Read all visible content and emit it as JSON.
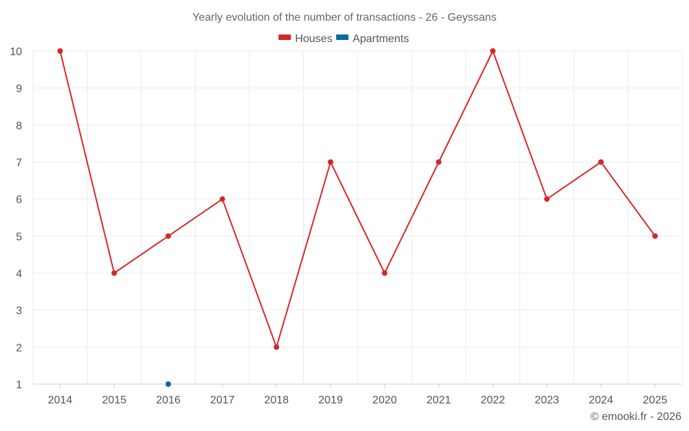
{
  "chart_data": {
    "type": "line",
    "title": "Yearly evolution of the number of transactions - 26 - Geyssans",
    "categories": [
      "2014",
      "2015",
      "2016",
      "2017",
      "2018",
      "2019",
      "2020",
      "2021",
      "2022",
      "2023",
      "2024",
      "2025"
    ],
    "series": [
      {
        "name": "Houses",
        "color": "#d62728",
        "values": [
          10,
          4,
          5,
          6,
          2,
          7,
          4,
          7,
          10,
          6,
          7,
          5
        ]
      },
      {
        "name": "Apartments",
        "color": "#0b6aa0",
        "values": [
          null,
          null,
          1,
          null,
          null,
          null,
          null,
          null,
          null,
          null,
          null,
          null
        ]
      }
    ],
    "ylim": [
      1,
      10
    ],
    "yticks": [
      1,
      2,
      3,
      4,
      5,
      6,
      7,
      8,
      9,
      10
    ],
    "legend": "top-center",
    "grid": true,
    "xlabel": "",
    "ylabel": ""
  },
  "credit": "© emooki.fr - 2026"
}
